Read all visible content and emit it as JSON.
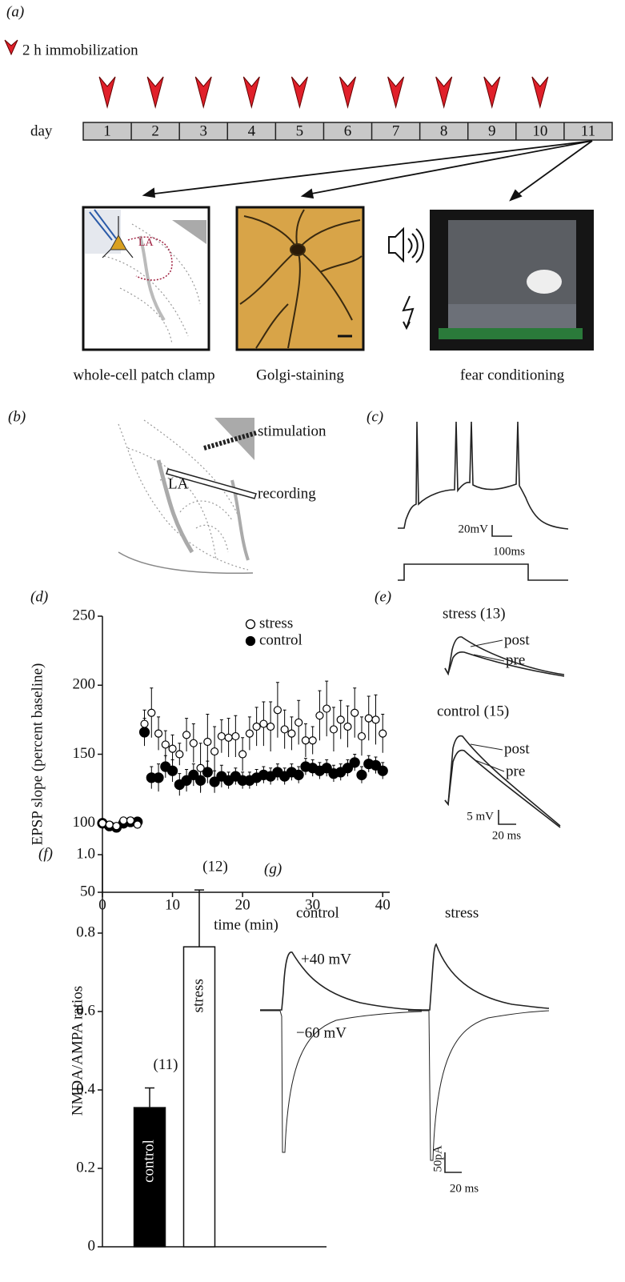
{
  "panel_labels": [
    "(a)",
    "(b)",
    "(c)",
    "(d)",
    "(e)",
    "(f)",
    "(g)"
  ],
  "panel_a": {
    "legend": "2 h immobilization",
    "day_label": "day",
    "days": [
      1,
      2,
      3,
      4,
      5,
      6,
      7,
      8,
      9,
      10,
      11
    ],
    "inset_region": "LA",
    "captions": [
      "whole-cell patch clamp",
      "Golgi-staining",
      "fear conditioning"
    ]
  },
  "panel_b": {
    "stimulation": "stimulation",
    "recording": "recording",
    "region": "LA"
  },
  "panel_c": {
    "voltage_scale": "20mV",
    "time_scale": "100ms"
  },
  "panel_e": {
    "groups": [
      {
        "label": "stress (13)",
        "post": "post",
        "pre": "pre"
      },
      {
        "label": "control (15)",
        "post": "post",
        "pre": "pre"
      }
    ],
    "voltage_scale": "5 mV",
    "time_scale": "20 ms"
  },
  "panel_g": {
    "groups": [
      "control",
      "stress"
    ],
    "positive": "+40 mV",
    "negative": "−60 mV",
    "current_scale": "50pA",
    "time_scale": "20 ms"
  },
  "chart_data": [
    {
      "type": "scatter",
      "y_label": "EPSP slope (percent baseline)",
      "x_label": "time (min)",
      "x": [
        0,
        1,
        2,
        3,
        4,
        5,
        6,
        7,
        8,
        9,
        10,
        11,
        12,
        13,
        14,
        15,
        16,
        17,
        18,
        19,
        20,
        21,
        22,
        23,
        24,
        25,
        26,
        27,
        28,
        29,
        30,
        31,
        32,
        33,
        34,
        35,
        36,
        37,
        38,
        39,
        40
      ],
      "xlim": [
        0,
        41
      ],
      "xticks": [
        0,
        10,
        20,
        30,
        40
      ],
      "ylim": [
        50,
        250
      ],
      "yticks": [
        50,
        100,
        150,
        200,
        250
      ],
      "series": [
        {
          "name": "stress",
          "marker": "open",
          "color": "#000000",
          "values": [
            100,
            99,
            98,
            102,
            102,
            99,
            172,
            180,
            165,
            157,
            154,
            150,
            164,
            158,
            140,
            159,
            152,
            163,
            162,
            163,
            150,
            165,
            170,
            172,
            170,
            182,
            168,
            165,
            173,
            160,
            160,
            178,
            183,
            168,
            175,
            170,
            180,
            163,
            176,
            175,
            165
          ],
          "errors": [
            2,
            2,
            2,
            2,
            2,
            2,
            10,
            18,
            12,
            10,
            10,
            8,
            12,
            14,
            18,
            20,
            18,
            12,
            14,
            15,
            12,
            12,
            14,
            16,
            18,
            20,
            14,
            12,
            16,
            12,
            10,
            18,
            20,
            16,
            14,
            15,
            18,
            14,
            16,
            18,
            14
          ]
        },
        {
          "name": "control",
          "marker": "filled",
          "color": "#000000",
          "values": [
            100,
            98,
            97,
            100,
            101,
            101,
            166,
            133,
            133,
            141,
            138,
            128,
            131,
            135,
            131,
            137,
            130,
            134,
            131,
            134,
            131,
            131,
            133,
            135,
            134,
            137,
            134,
            137,
            135,
            141,
            140,
            138,
            140,
            136,
            137,
            140,
            144,
            135,
            143,
            142,
            138
          ],
          "errors": [
            2,
            2,
            2,
            2,
            2,
            2,
            10,
            8,
            10,
            8,
            8,
            8,
            8,
            8,
            8,
            8,
            8,
            8,
            6,
            6,
            6,
            6,
            6,
            6,
            6,
            6,
            6,
            6,
            6,
            6,
            6,
            6,
            6,
            6,
            6,
            6,
            6,
            6,
            6,
            6,
            6
          ]
        }
      ]
    },
    {
      "type": "bar",
      "y_label": "NMDA/AMPA ratios",
      "categories": [
        "control",
        "stress"
      ],
      "values": [
        0.355,
        0.765
      ],
      "errors": [
        0.05,
        0.145
      ],
      "n_labels": [
        "(11)",
        "(12)"
      ],
      "colors": [
        "#000000",
        "#ffffff"
      ],
      "ylim": [
        0,
        1
      ],
      "yticks": [
        0,
        0.2,
        0.4,
        0.6,
        0.8,
        {
          "value": 1,
          "label": "1.0"
        }
      ]
    }
  ]
}
